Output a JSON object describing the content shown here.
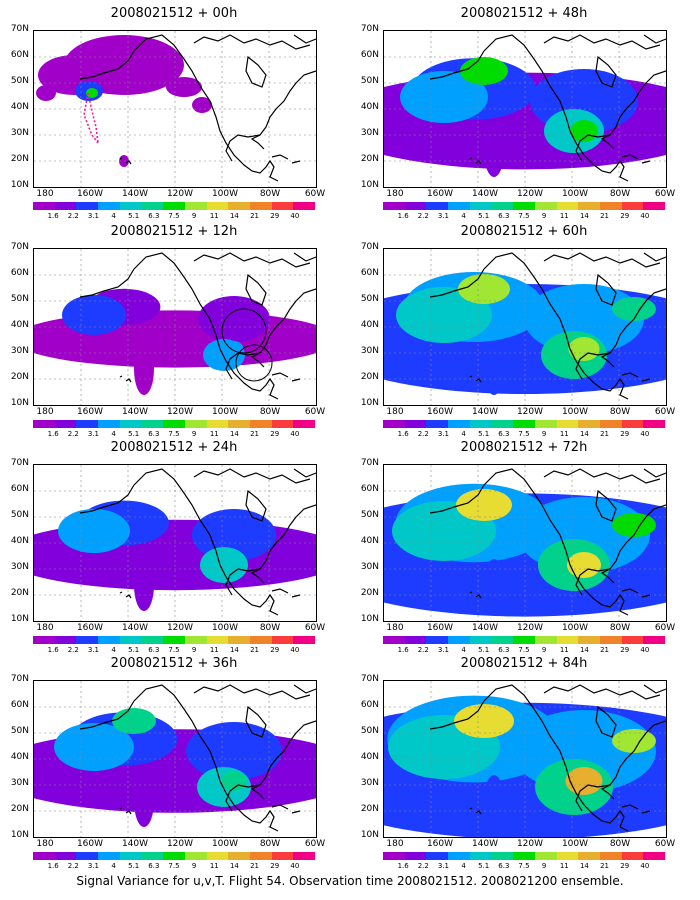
{
  "panels": [
    {
      "title": "2008021512 + 00h",
      "level": 0
    },
    {
      "title": "2008021512 + 48h",
      "level": 4
    },
    {
      "title": "2008021512 + 12h",
      "level": 1
    },
    {
      "title": "2008021512 + 60h",
      "level": 5
    },
    {
      "title": "2008021512 + 24h",
      "level": 2
    },
    {
      "title": "2008021512 + 72h",
      "level": 6
    },
    {
      "title": "2008021512 + 36h",
      "level": 3
    },
    {
      "title": "2008021512 + 84h",
      "level": 7
    }
  ],
  "lat_labels": [
    "70N",
    "60N",
    "50N",
    "40N",
    "30N",
    "20N",
    "10N"
  ],
  "lon_labels": [
    "180",
    "160W",
    "140W",
    "120W",
    "100W",
    "80W",
    "60W"
  ],
  "colorbar_labels": [
    "1.6",
    "2.2",
    "3.1",
    "4",
    "5.1",
    "6.3",
    "7.5",
    "9",
    "11",
    "14",
    "21",
    "29",
    "40"
  ],
  "colorbar_colors": [
    "#a000c8",
    "#8200dc",
    "#1e3cff",
    "#00a0ff",
    "#00c8c8",
    "#00d28c",
    "#00dc00",
    "#a0e632",
    "#e6dc32",
    "#e6af2d",
    "#f08228",
    "#fa3c3c",
    "#f00082"
  ],
  "footer": "Signal Variance for u,v,T. Flight 54. Observation time 2008021512. 2008021200 ensemble."
}
